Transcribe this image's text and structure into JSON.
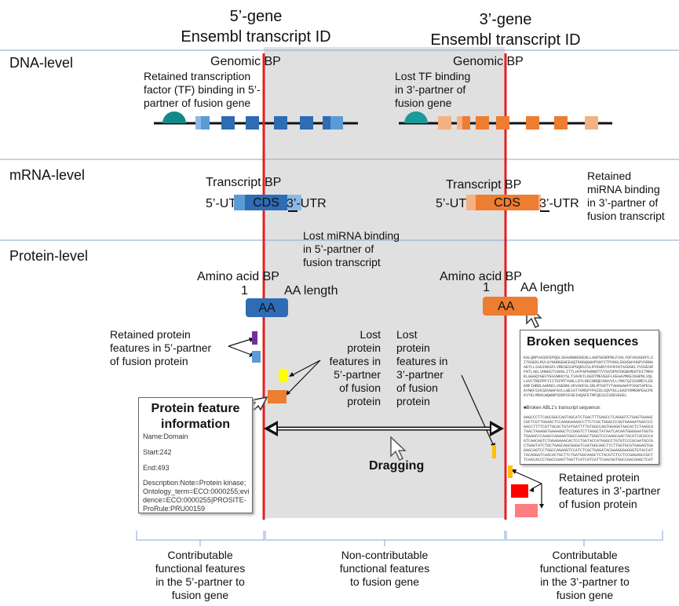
{
  "colors": {
    "grey_region": "#e0e0e0",
    "red_line": "#e32020",
    "blue_dark": "#2e6cb5",
    "blue_light": "#5b9bd5",
    "orange_dark": "#ed7d31",
    "orange_light": "#f4b183",
    "teal": "#138a8a",
    "purple": "#7030a0",
    "yellow": "#ffff00",
    "gold": "#ffc000",
    "red_box": "#ff0000",
    "pink_box": "#ff7c80",
    "bracket": "#7fa8d8"
  },
  "header": {
    "gene5": "5’-gene\nEnsembl transcript ID",
    "gene3": "3’-gene\nEnsembl transcript ID"
  },
  "levels": {
    "dna": "DNA-level",
    "mrna": "mRNA-level",
    "protein": "Protein-level"
  },
  "dna": {
    "genomic_bp_left": "Genomic BP",
    "genomic_bp_right": "Genomic BP",
    "retained_tf": "Retained transcription\nfactor (TF) binding in 5’-\npartner of fusion gene",
    "lost_tf": "Lost TF binding\nin 3’-partner of\nfusion gene"
  },
  "mrna": {
    "transcript_bp_left": "Transcript BP",
    "transcript_bp_right": "Transcript BP",
    "utr5_left": "5’-UTR",
    "cds_left": "CDS",
    "utr3_left": "3’-UTR",
    "utr5_right": "5’-UTR",
    "cds_right": "CDS",
    "utr3_right": "3’-UTR",
    "retained_mirna": "Retained\nmiRNA binding\nin 3’-partner of\nfusion transcript",
    "lost_mirna": "Lost miRNA binding\nin 5’-partner of\nfusion transcript"
  },
  "protein": {
    "aa_bp_left": "Amino acid BP",
    "aa_bp_right": "Amino acid BP",
    "one_left": "1",
    "one_right": "1",
    "aa_len_left": "AA length",
    "aa_len_right": "AA length",
    "aa_left": "AA",
    "aa_right": "AA",
    "retained_5": "Retained protein\nfeatures in 5’-partner\nof fusion protein",
    "lost_5": "Lost\nprotein\nfeatures in\n5’-partner\nof fusion\nprotein",
    "lost_3": "Lost\nprotein\nfeatures in\n3’-partner\nof fusion\nprotein",
    "retained_3": "Retained protein\nfeatures in 3’-partner\nof fusion protein",
    "dragging": "Dragging"
  },
  "feature_box": {
    "title": "Protein feature\ninformation",
    "name": "Name:Domain",
    "start": "Start:242",
    "end": "End:493",
    "description": "Description:Note=Protein kinase;\nOntology_term=ECO:0000255;evi\ndence=ECO:0000255|PROSITE-\nProRule:PRU00159"
  },
  "broken_box": {
    "title": "Broken sequences",
    "seq1": "KALQRPVASDFEPQGLSEAARWNSKENLLAGPSENDPNLFVALYDFVASGDNTLSITKGEKLRVLGYNHNGEWCEAQTKNGQGWVPSNYITPVNSLEKHSWYHGPVSRNAAEYLLSSGINGSFLVRESESSPGQRSISLRYEGRVYHYRINTASDGKLYVSSESRFNTLAELVHHHSTVADGLITTLHYPAPKRNKPTVYGVSPNYDKWEMERTDITMKHKLGGGQYGEVYEGVWKKYSLTVAVKTLKEDTMEVEEFLKEAAVMKEIKHPNLVQLLGVCTREPPFYIITEFMTYGNLLDYLRECNRQEVNAVVLLYMATQISSAMEYLEKKNFIHRDLAARNCLVGENHLVKVADFGLSRLMTGDTYTAHAGAKFPIKWTAPESLAYNKFSIKSDVWAFGVLLWEIATYGMSPYPGIDLSQVYELLEKDYRMERPEGCPEKVYELMRACWQWNPSDRPSFAEIHQAFETMFQESSISDEVEKEL",
    "label": "■Broken ABL1's transcript sequence:",
    "seq2": "AAGCCCTTCAGCGGCCAGTAGCATCTGACTTTGAGCCTCAGGGTCTGAGTGAAGCCGCTCGTTGGAACTCCAAGGAAAACCTTCTCGCTGGACCCAGTGAAAATGACCCCAACCTTTTCGTTGCACTGTATGATTTTGTGGCCAGTGGAGATAACACTCTAAGCATAACTAAAGGTGAAAAGCTCCGGGTCTTAGGCTATAATCACAATGGGGAATGGTGTGAAGCCCAAACCAAAAATGGCCAAGGCTGGGTCCCAAGCAACTACATCACGCCAGTCAACAGTCTGGAGAAACACTCCTGGTACCATGGGCCTGTGTCCCGCAATGCCGCTGAGTATCTGCTGAGCAGCGGGATCAATGGCAGCTTCTTGGTGCGTGAGAGTGAGAGCAGTCCTGGCCAGAGGTCCATCTCGCTGAGATACGAAGGGAGGGTGTACCATTACAGGATCAACACTGCTTCTGATGGCAAGCTCTACGTCTCCTCCGAGAGCCGCTTCAACACCCTGGCCGAGTTGGTTCATCATCATTCAACGGTGGCCGACGGGCTCATCACCACGCTCCATTATCCAGCCCCAAAGCGCAACAAGCCCACTGTCTATGGTGTGTCCCCCAACTACGACAAGTGGGAGATGGAACGCACGGACATCACCATGAAGCACAAGCTGGGCGGGGGCCAGTACGGGGAGGTGTACGAGGGCGTGTGGAAGAAATACAGCCTGACGGTGGCCGTGAAGACCTTGAAGGAGGACACCATGGAGGTGGAAGAGTTCTTGAAAGAAGCTGCAGTCATGAAAGAGATCAAACACCCTAACCTGGTGCAGCTCCTTGGGGTCTGCACCCGGGAGCCCCCGTTCTATATCATCACTGAGTTCATGACCTACGGGAACCTCCTGGACTACCTGAGGGAGTGCAACCGGCAGGAGGTGAACGCCGTGGTGCTGCTGTACATGGCCACTCAGATCTCGTCAGCCATGGAGTACCTGGAGAAGAAAAACTTCATCCACAGAGATCTTGCTGCCCGAAACTGCCTGGTAGGGGAGAACCACTTGGTGAAGGTAGCTGATTTTGGCCTGAGCAGGTTGATGACAGGGGACACCTACACAGCCCATGCTGGAGCCAAGTTCCCCATCAAATGGACTGCACCCGAGAGCCTGGCCTACAACAAGTTCTCCATCAAGTCCGACGTCTGGGCATTTGGAGTATTGCTTTGGGAAATTGCTACCTATGGCATGTCCCCTTACCCGGGAATTGACCTGTCCCAGGTGTATGAGCTGCTAGAGAAGGACTACCGCATGGAGCGCCCAGAAGGCTGCCCAGAGAAGGTCTATGAACTCATGCGAGCATGTTGGCAGTGGAATCCCTCTGACCGGCCCTCCTTTGCTGAAATCCACCAAGCCTTTGAAACAATGTTCCAGGAATCCAGTATCTCAGACGAAGTGGAAAAGGAGCTG"
  },
  "bottom": {
    "contrib_5": "Contributable\nfunctional features\nin the 5’-partner to\nfusion gene",
    "non_contrib": "Non-contributable\nfunctional features\nto fusion gene",
    "contrib_3": "Contributable\nfunctional features\nin the 3’-partner to\nfusion gene"
  }
}
